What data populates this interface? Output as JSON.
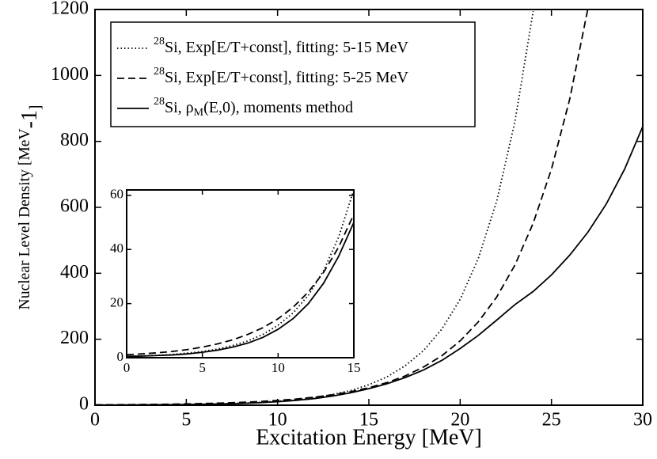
{
  "chart_data": [
    {
      "type": "line",
      "xlabel": "Excitation Energy [MeV]",
      "ylabel": [
        "Nuclear Level Density [MeV",
        "-1",
        "]"
      ],
      "x": [
        0,
        1,
        2,
        3,
        4,
        5,
        6,
        7,
        8,
        9,
        10,
        11,
        12,
        13,
        14,
        15,
        16,
        17,
        18,
        19,
        20,
        21,
        22,
        23,
        24,
        25,
        26,
        27,
        28,
        29,
        30
      ],
      "xlim": [
        0,
        30
      ],
      "ylim": [
        0,
        1200
      ],
      "xticks": [
        0,
        5,
        10,
        15,
        20,
        25,
        30
      ],
      "yticks": [
        0,
        200,
        400,
        600,
        800,
        1000,
        1200
      ],
      "legend": "upper left",
      "series": [
        {
          "name": [
            "28",
            "Si, Exp[E/T+const], fitting: 5-15 MeV"
          ],
          "color": "#000000",
          "dash": "dotted",
          "values": [
            0.45,
            0.62,
            0.86,
            1.2,
            1.7,
            2.3,
            3.2,
            4.5,
            6.2,
            8.6,
            12,
            16.6,
            23.1,
            32.1,
            44.6,
            62,
            86,
            120,
            166,
            231,
            321,
            446,
            619,
            860,
            1195,
            null,
            null,
            null,
            null,
            null,
            null
          ]
        },
        {
          "name": [
            "28",
            "Si, Exp[E/T+const], fitting: 5-25 MeV"
          ],
          "color": "#000000",
          "dash": "dashed",
          "values": [
            1.1,
            1.4,
            1.8,
            2.3,
            3.0,
            3.9,
            5.1,
            6.6,
            8.6,
            11.1,
            14.4,
            18.7,
            24.3,
            31.5,
            40.9,
            53,
            68.7,
            89,
            116,
            150,
            195,
            253,
            328,
            425,
            552,
            716,
            928,
            1204,
            null,
            null,
            null
          ]
        },
        {
          "name": [
            "28",
            "Si, ρ",
            "M",
            "(E,0), moments method"
          ],
          "color": "#000000",
          "dash": "solid",
          "values": [
            0.5,
            0.6,
            0.8,
            1.0,
            1.4,
            2.0,
            2.8,
            3.9,
            5.4,
            7.5,
            10.5,
            14.5,
            20,
            27.5,
            37.5,
            50,
            65,
            84,
            107,
            136,
            172,
            212,
            258,
            305,
            345,
            395,
            455,
            525,
            610,
            715,
            845
          ]
        }
      ]
    },
    {
      "type": "line",
      "x": [
        0,
        1,
        2,
        3,
        4,
        5,
        6,
        7,
        8,
        9,
        10,
        11,
        12,
        13,
        14,
        15
      ],
      "xlim": [
        0,
        15
      ],
      "ylim": [
        0,
        62
      ],
      "xticks": [
        0,
        5,
        10,
        15
      ],
      "yticks": [
        0,
        20,
        40,
        60
      ],
      "series": [
        {
          "color": "#000000",
          "dash": "dotted",
          "values": [
            0.45,
            0.62,
            0.86,
            1.2,
            1.7,
            2.3,
            3.2,
            4.5,
            6.2,
            8.6,
            12,
            16.6,
            23.1,
            32.1,
            44.6,
            62
          ]
        },
        {
          "color": "#000000",
          "dash": "dashed",
          "values": [
            1.1,
            1.4,
            1.8,
            2.3,
            3.0,
            3.9,
            5.1,
            6.6,
            8.6,
            11.1,
            14.4,
            18.7,
            24.3,
            31.5,
            40.9,
            53
          ]
        },
        {
          "color": "#000000",
          "dash": "solid",
          "values": [
            0.5,
            0.6,
            0.8,
            1.0,
            1.4,
            2.0,
            2.8,
            3.9,
            5.4,
            7.5,
            10.5,
            14.5,
            20,
            27.5,
            37.5,
            50
          ]
        }
      ]
    }
  ]
}
